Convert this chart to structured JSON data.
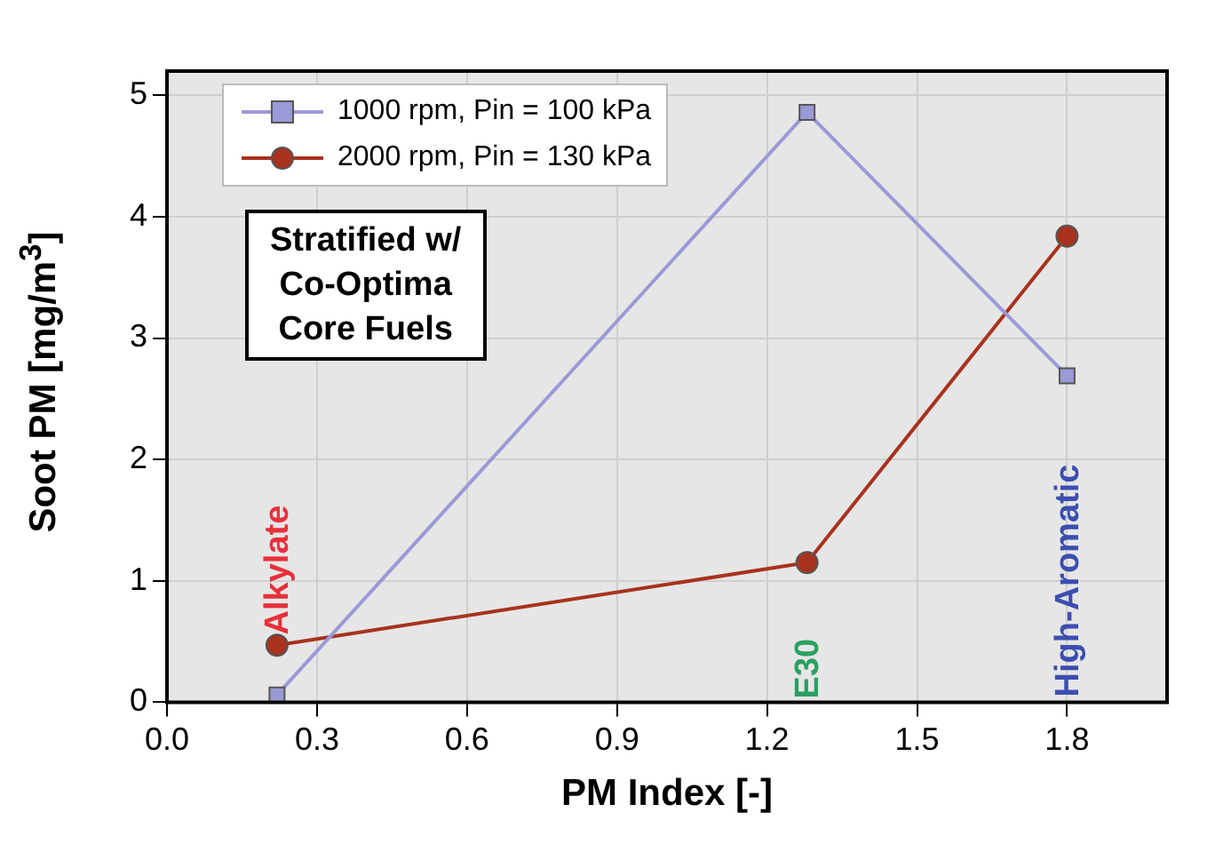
{
  "chart_data": {
    "type": "line",
    "xlabel": "PM Index [-]",
    "ylabel": "Soot PM [mg/m$^{3}$]",
    "xlim": [
      0,
      2.0
    ],
    "xticks": [
      {
        "value": 0,
        "label": "0.0"
      },
      0.3,
      0.6,
      0.9,
      1.2,
      1.5,
      1.8
    ],
    "ylim": [
      0,
      5.2
    ],
    "yticks": [
      0,
      1,
      2,
      3,
      4,
      5
    ],
    "grid": true,
    "legend": "top left",
    "line_style": "solid",
    "series": [
      {
        "name": "1000 rpm, Pin = 100 kPa",
        "color": "#9a9ad6",
        "marker": "square",
        "x": [
          0.22,
          1.28,
          1.8
        ],
        "values": [
          0.06,
          4.86,
          2.69
        ]
      },
      {
        "name": "2000 rpm, Pin = 130 kPa",
        "color": "#a8321e",
        "marker": "circle",
        "x": [
          0.22,
          1.28,
          1.8
        ],
        "values": [
          0.47,
          1.15,
          3.84
        ]
      }
    ],
    "annotations": [
      "Stratified w/\nCo-Optima\nCore Fuels",
      "Alkylate",
      "E30",
      "High-Aromatic"
    ]
  }
}
